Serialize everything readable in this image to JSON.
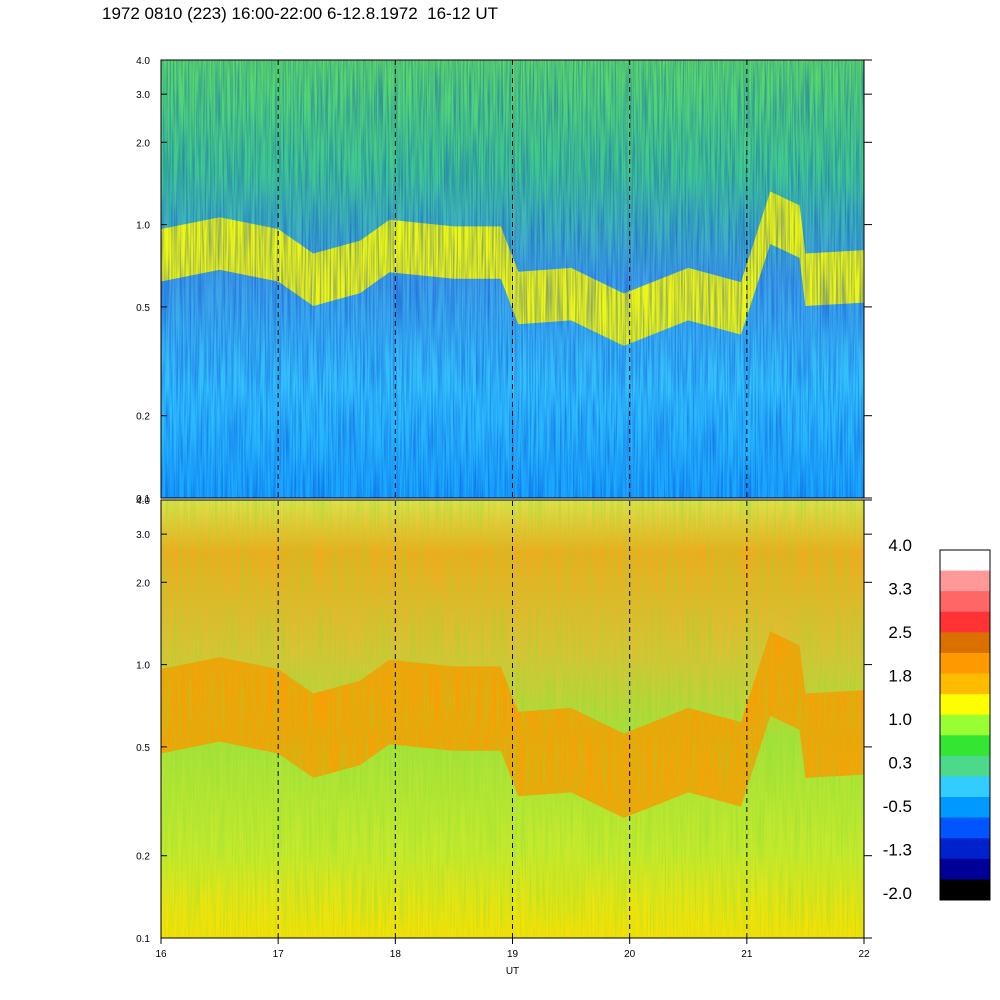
{
  "title": "1972 0810 (223) 16:00-22:00 6-12.8.1972  16-12 UT",
  "chart_data": {
    "type": "heatmap",
    "title": "1972 0810 (223) 16:00-22:00 6-12.8.1972  16-12 UT",
    "xlabel": "UT",
    "x_ticks": [
      "16",
      "17",
      "18",
      "19",
      "20",
      "21",
      "22"
    ],
    "xlim": [
      16,
      22
    ],
    "y_scale": "log",
    "panels": [
      {
        "name": "",
        "ylim": [
          0.1,
          4.0
        ],
        "y_ticks": [
          {
            "v": 0.1,
            "label": "0.1"
          },
          {
            "v": 0.2,
            "label": "0.2"
          },
          {
            "v": 0.5,
            "label": "0.5"
          },
          {
            "v": 1.0,
            "label": "1.0"
          },
          {
            "v": 2.0,
            "label": "2.0"
          },
          {
            "v": 3.0,
            "label": "3.0"
          },
          {
            "v": 4.0,
            "label": "4.0"
          }
        ],
        "dominant_low": "light blue / blue",
        "band_color": "yellow",
        "dominant_high": "green / cyan"
      },
      {
        "name": "",
        "ylim": [
          0.1,
          4.0
        ],
        "y_ticks": [
          {
            "v": 0.1,
            "label": "0.1"
          },
          {
            "v": 0.2,
            "label": "0.2"
          },
          {
            "v": 0.5,
            "label": "0.5"
          },
          {
            "v": 1.0,
            "label": "1.0"
          },
          {
            "v": 2.0,
            "label": "2.0"
          },
          {
            "v": 3.0,
            "label": "3.0"
          },
          {
            "v": 4.0,
            "label": "4.0"
          }
        ],
        "dominant_low": "yellow / green",
        "band_color": "orange",
        "dominant_high": "orange / yellow"
      }
    ],
    "band_trace": [
      {
        "x": 16.0,
        "y": 0.86
      },
      {
        "x": 16.5,
        "y": 0.95
      },
      {
        "x": 17.0,
        "y": 0.86
      },
      {
        "x": 17.3,
        "y": 0.7
      },
      {
        "x": 17.7,
        "y": 0.78
      },
      {
        "x": 17.95,
        "y": 0.93
      },
      {
        "x": 18.5,
        "y": 0.88
      },
      {
        "x": 18.9,
        "y": 0.88
      },
      {
        "x": 19.05,
        "y": 0.6
      },
      {
        "x": 19.5,
        "y": 0.62
      },
      {
        "x": 19.95,
        "y": 0.5
      },
      {
        "x": 20.5,
        "y": 0.62
      },
      {
        "x": 20.95,
        "y": 0.55
      },
      {
        "x": 21.2,
        "y": 1.18
      },
      {
        "x": 21.45,
        "y": 1.05
      },
      {
        "x": 21.5,
        "y": 0.7
      },
      {
        "x": 22.0,
        "y": 0.72
      }
    ],
    "colorbar": {
      "labels": [
        "4.0",
        "3.3",
        "2.5",
        "1.8",
        "1.0",
        "0.3",
        "-0.5",
        "-1.3",
        "-2.0"
      ],
      "colors": [
        "#ffffff",
        "#ff9999",
        "#ff6666",
        "#ff3333",
        "#d97000",
        "#ff9900",
        "#ffbb00",
        "#ffff00",
        "#99ff33",
        "#33e633",
        "#4dd98c",
        "#33ccff",
        "#0099ff",
        "#0055ff",
        "#0022cc",
        "#000099",
        "#000000"
      ]
    },
    "grid": "dashed vertical lines at each hour"
  }
}
